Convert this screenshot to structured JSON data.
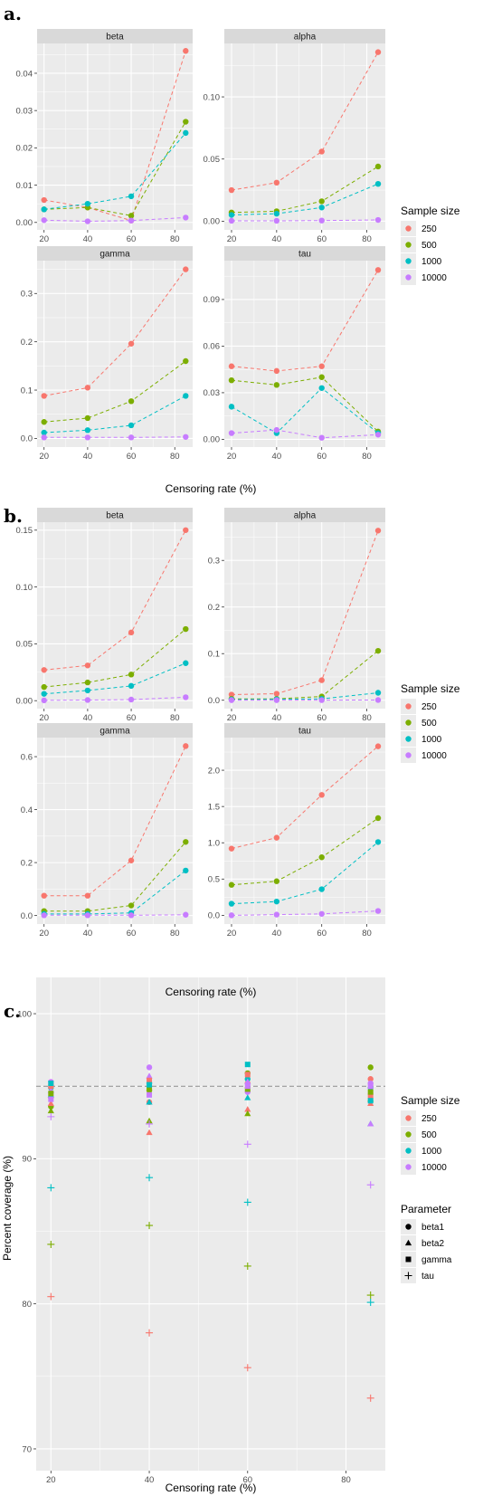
{
  "figure_labels": [
    "a.",
    "b.",
    "c."
  ],
  "legend": {
    "sample_title": "Sample size",
    "sample_items": [
      "250",
      "500",
      "1000",
      "10000"
    ],
    "parameter_title": "Parameter",
    "parameter_items": [
      "beta1",
      "beta2",
      "gamma",
      "tau"
    ]
  },
  "colors": {
    "250": "#F8766D",
    "500": "#7CAE00",
    "1000": "#00BFC4",
    "10000": "#C77CFF",
    "panel_bg": "#EBEBEB",
    "strip_bg": "#D9D9D9",
    "reference_line": "#8C8C8C"
  },
  "chart_data": [
    {
      "type": "line",
      "panel": "a",
      "xlabel": "Censoring rate (%)",
      "ylabel": "",
      "legend_title": "Sample size",
      "line_style": "dashed",
      "facets": [
        {
          "name": "beta",
          "x": [
            20,
            40,
            60,
            85
          ],
          "xticks": [
            20,
            40,
            60,
            80
          ],
          "ylim": [
            -0.002,
            0.048
          ],
          "yticks": [
            0.0,
            0.01,
            0.02,
            0.03,
            0.04
          ],
          "ytick_labels": [
            "0.00",
            "0.01",
            "0.02",
            "0.03",
            "0.04"
          ],
          "series": [
            {
              "name": "250",
              "values": [
                0.006,
                0.004,
                0.0005,
                0.046
              ]
            },
            {
              "name": "500",
              "values": [
                0.0035,
                0.004,
                0.0018,
                0.027
              ]
            },
            {
              "name": "1000",
              "values": [
                0.0035,
                0.005,
                0.007,
                0.024
              ]
            },
            {
              "name": "10000",
              "values": [
                0.0006,
                0.0003,
                0.0005,
                0.0013
              ]
            }
          ]
        },
        {
          "name": "alpha",
          "x": [
            20,
            40,
            60,
            85
          ],
          "xticks": [
            20,
            40,
            60,
            80
          ],
          "ylim": [
            -0.007,
            0.143
          ],
          "yticks": [
            0.0,
            0.05,
            0.1
          ],
          "ytick_labels": [
            "0.00",
            "0.05",
            "0.10"
          ],
          "series": [
            {
              "name": "250",
              "values": [
                0.025,
                0.031,
                0.056,
                0.136
              ]
            },
            {
              "name": "500",
              "values": [
                0.007,
                0.008,
                0.016,
                0.044
              ]
            },
            {
              "name": "1000",
              "values": [
                0.005,
                0.006,
                0.011,
                0.03
              ]
            },
            {
              "name": "10000",
              "values": [
                0.0003,
                0.0003,
                0.0005,
                0.001
              ]
            }
          ]
        },
        {
          "name": "gamma",
          "x": [
            20,
            40,
            60,
            85
          ],
          "xticks": [
            20,
            40,
            60,
            80
          ],
          "ylim": [
            -0.018,
            0.368
          ],
          "yticks": [
            0.0,
            0.1,
            0.2,
            0.3
          ],
          "ytick_labels": [
            "0.0",
            "0.1",
            "0.2",
            "0.3"
          ],
          "series": [
            {
              "name": "250",
              "values": [
                0.088,
                0.105,
                0.196,
                0.35
              ]
            },
            {
              "name": "500",
              "values": [
                0.034,
                0.042,
                0.077,
                0.16
              ]
            },
            {
              "name": "1000",
              "values": [
                0.012,
                0.017,
                0.027,
                0.088
              ]
            },
            {
              "name": "10000",
              "values": [
                0.002,
                0.002,
                0.002,
                0.003
              ]
            }
          ]
        },
        {
          "name": "tau",
          "x": [
            20,
            40,
            60,
            85
          ],
          "xticks": [
            20,
            40,
            60,
            80
          ],
          "ylim": [
            -0.005,
            0.115
          ],
          "yticks": [
            0.0,
            0.03,
            0.06,
            0.09
          ],
          "ytick_labels": [
            "0.00",
            "0.03",
            "0.06",
            "0.09"
          ],
          "series": [
            {
              "name": "250",
              "values": [
                0.047,
                0.044,
                0.047,
                0.109
              ]
            },
            {
              "name": "500",
              "values": [
                0.038,
                0.035,
                0.04,
                0.005
              ]
            },
            {
              "name": "1000",
              "values": [
                0.021,
                0.004,
                0.033,
                0.004
              ]
            },
            {
              "name": "10000",
              "values": [
                0.004,
                0.006,
                0.001,
                0.003
              ]
            }
          ]
        }
      ]
    },
    {
      "type": "line",
      "panel": "b",
      "xlabel": "Censoring rate (%)",
      "ylabel": "",
      "legend_title": "Sample size",
      "line_style": "dashed",
      "facets": [
        {
          "name": "beta",
          "x": [
            20,
            40,
            60,
            85
          ],
          "xticks": [
            20,
            40,
            60,
            80
          ],
          "ylim": [
            -0.007,
            0.157
          ],
          "yticks": [
            0.0,
            0.05,
            0.1,
            0.15
          ],
          "ytick_labels": [
            "0.00",
            "0.05",
            "0.10",
            "0.15"
          ],
          "series": [
            {
              "name": "250",
              "values": [
                0.027,
                0.031,
                0.06,
                0.15
              ]
            },
            {
              "name": "500",
              "values": [
                0.012,
                0.016,
                0.023,
                0.063
              ]
            },
            {
              "name": "1000",
              "values": [
                0.006,
                0.009,
                0.013,
                0.033
              ]
            },
            {
              "name": "10000",
              "values": [
                0.0003,
                0.0006,
                0.001,
                0.003
              ]
            }
          ]
        },
        {
          "name": "alpha",
          "x": [
            20,
            40,
            60,
            85
          ],
          "xticks": [
            20,
            40,
            60,
            80
          ],
          "ylim": [
            -0.018,
            0.382
          ],
          "yticks": [
            0.0,
            0.1,
            0.2,
            0.3
          ],
          "ytick_labels": [
            "0.0",
            "0.1",
            "0.2",
            "0.3"
          ],
          "series": [
            {
              "name": "250",
              "values": [
                0.012,
                0.014,
                0.043,
                0.364
              ]
            },
            {
              "name": "500",
              "values": [
                0.003,
                0.003,
                0.008,
                0.106
              ]
            },
            {
              "name": "1000",
              "values": [
                0.0015,
                0.002,
                0.003,
                0.016
              ]
            },
            {
              "name": "10000",
              "values": [
                0.0002,
                0.0002,
                0.0003,
                0.0005
              ]
            }
          ]
        },
        {
          "name": "gamma",
          "x": [
            20,
            40,
            60,
            85
          ],
          "xticks": [
            20,
            40,
            60,
            80
          ],
          "ylim": [
            -0.032,
            0.672
          ],
          "yticks": [
            0.0,
            0.2,
            0.4,
            0.6
          ],
          "ytick_labels": [
            "0.0",
            "0.2",
            "0.4",
            "0.6"
          ],
          "series": [
            {
              "name": "250",
              "values": [
                0.075,
                0.075,
                0.208,
                0.64
              ]
            },
            {
              "name": "500",
              "values": [
                0.017,
                0.017,
                0.038,
                0.278
              ]
            },
            {
              "name": "1000",
              "values": [
                0.006,
                0.006,
                0.01,
                0.17
              ]
            },
            {
              "name": "10000",
              "values": [
                0.001,
                0.001,
                0.001,
                0.003
              ]
            }
          ]
        },
        {
          "name": "tau",
          "x": [
            20,
            40,
            60,
            85
          ],
          "xticks": [
            20,
            40,
            60,
            80
          ],
          "ylim": [
            -0.12,
            2.45
          ],
          "yticks": [
            0.0,
            0.5,
            1.0,
            1.5,
            2.0
          ],
          "ytick_labels": [
            "0.0",
            "0.5",
            "1.0",
            "1.5",
            "2.0"
          ],
          "series": [
            {
              "name": "250",
              "values": [
                0.92,
                1.07,
                1.66,
                2.33
              ]
            },
            {
              "name": "500",
              "values": [
                0.42,
                0.47,
                0.8,
                1.34
              ]
            },
            {
              "name": "1000",
              "values": [
                0.16,
                0.19,
                0.36,
                1.01
              ]
            },
            {
              "name": "10000",
              "values": [
                0.0,
                0.01,
                0.02,
                0.06
              ]
            }
          ]
        }
      ]
    },
    {
      "type": "scatter",
      "panel": "c",
      "xlabel": "Censoring rate (%)",
      "ylabel": "Percent coverage (%)",
      "xlim": [
        17,
        88
      ],
      "ylim": [
        68.5,
        102.5
      ],
      "xticks": [
        20,
        40,
        60,
        80
      ],
      "yticks": [
        70,
        80,
        90,
        100
      ],
      "reference_line_y": 95,
      "grid": true,
      "color_legend_title": "Sample size",
      "shape_legend_title": "Parameter",
      "points": [
        {
          "x": 20,
          "sample": "250",
          "param": "beta1",
          "y": 94.2
        },
        {
          "x": 20,
          "sample": "500",
          "param": "beta1",
          "y": 93.6
        },
        {
          "x": 20,
          "sample": "1000",
          "param": "beta1",
          "y": 94.9
        },
        {
          "x": 20,
          "sample": "10000",
          "param": "beta1",
          "y": 95.3
        },
        {
          "x": 20,
          "sample": "250",
          "param": "beta2",
          "y": 93.8
        },
        {
          "x": 20,
          "sample": "500",
          "param": "beta2",
          "y": 93.3
        },
        {
          "x": 20,
          "sample": "1000",
          "param": "beta2",
          "y": 94.4
        },
        {
          "x": 20,
          "sample": "10000",
          "param": "beta2",
          "y": 94.7
        },
        {
          "x": 20,
          "sample": "250",
          "param": "gamma",
          "y": 95.0
        },
        {
          "x": 20,
          "sample": "500",
          "param": "gamma",
          "y": 94.5
        },
        {
          "x": 20,
          "sample": "1000",
          "param": "gamma",
          "y": 95.2
        },
        {
          "x": 20,
          "sample": "10000",
          "param": "gamma",
          "y": 94.1
        },
        {
          "x": 20,
          "sample": "250",
          "param": "tau",
          "y": 80.5
        },
        {
          "x": 20,
          "sample": "500",
          "param": "tau",
          "y": 84.1
        },
        {
          "x": 20,
          "sample": "1000",
          "param": "tau",
          "y": 88.0
        },
        {
          "x": 20,
          "sample": "10000",
          "param": "tau",
          "y": 92.9
        },
        {
          "x": 40,
          "sample": "250",
          "param": "beta1",
          "y": 93.9
        },
        {
          "x": 40,
          "sample": "500",
          "param": "beta1",
          "y": 94.7
        },
        {
          "x": 40,
          "sample": "1000",
          "param": "beta1",
          "y": 95.2
        },
        {
          "x": 40,
          "sample": "10000",
          "param": "beta1",
          "y": 96.3
        },
        {
          "x": 40,
          "sample": "250",
          "param": "beta2",
          "y": 91.8
        },
        {
          "x": 40,
          "sample": "500",
          "param": "beta2",
          "y": 92.6
        },
        {
          "x": 40,
          "sample": "1000",
          "param": "beta2",
          "y": 93.9
        },
        {
          "x": 40,
          "sample": "10000",
          "param": "beta2",
          "y": 95.7
        },
        {
          "x": 40,
          "sample": "250",
          "param": "gamma",
          "y": 95.4
        },
        {
          "x": 40,
          "sample": "500",
          "param": "gamma",
          "y": 94.9
        },
        {
          "x": 40,
          "sample": "1000",
          "param": "gamma",
          "y": 95.1
        },
        {
          "x": 40,
          "sample": "10000",
          "param": "gamma",
          "y": 94.4
        },
        {
          "x": 40,
          "sample": "250",
          "param": "tau",
          "y": 78.0
        },
        {
          "x": 40,
          "sample": "500",
          "param": "tau",
          "y": 85.4
        },
        {
          "x": 40,
          "sample": "1000",
          "param": "tau",
          "y": 88.7
        },
        {
          "x": 40,
          "sample": "10000",
          "param": "tau",
          "y": 92.4
        },
        {
          "x": 60,
          "sample": "250",
          "param": "beta1",
          "y": 95.2
        },
        {
          "x": 60,
          "sample": "500",
          "param": "beta1",
          "y": 95.9
        },
        {
          "x": 60,
          "sample": "1000",
          "param": "beta1",
          "y": 95.5
        },
        {
          "x": 60,
          "sample": "10000",
          "param": "beta1",
          "y": 94.6
        },
        {
          "x": 60,
          "sample": "250",
          "param": "beta2",
          "y": 93.4
        },
        {
          "x": 60,
          "sample": "500",
          "param": "beta2",
          "y": 93.1
        },
        {
          "x": 60,
          "sample": "1000",
          "param": "beta2",
          "y": 94.2
        },
        {
          "x": 60,
          "sample": "10000",
          "param": "beta2",
          "y": 95.3
        },
        {
          "x": 60,
          "sample": "250",
          "param": "gamma",
          "y": 95.8
        },
        {
          "x": 60,
          "sample": "500",
          "param": "gamma",
          "y": 94.8
        },
        {
          "x": 60,
          "sample": "1000",
          "param": "gamma",
          "y": 96.5
        },
        {
          "x": 60,
          "sample": "10000",
          "param": "gamma",
          "y": 95.0
        },
        {
          "x": 60,
          "sample": "250",
          "param": "tau",
          "y": 75.6
        },
        {
          "x": 60,
          "sample": "500",
          "param": "tau",
          "y": 82.6
        },
        {
          "x": 60,
          "sample": "1000",
          "param": "tau",
          "y": 87.0
        },
        {
          "x": 60,
          "sample": "10000",
          "param": "tau",
          "y": 91.0
        },
        {
          "x": 85,
          "sample": "250",
          "param": "beta1",
          "y": 95.5
        },
        {
          "x": 85,
          "sample": "500",
          "param": "beta1",
          "y": 96.3
        },
        {
          "x": 85,
          "sample": "1000",
          "param": "beta1",
          "y": 94.9
        },
        {
          "x": 85,
          "sample": "10000",
          "param": "beta1",
          "y": 95.2
        },
        {
          "x": 85,
          "sample": "250",
          "param": "beta2",
          "y": 93.8
        },
        {
          "x": 85,
          "sample": "500",
          "param": "beta2",
          "y": 94.1
        },
        {
          "x": 85,
          "sample": "1000",
          "param": "beta2",
          "y": 92.4
        },
        {
          "x": 85,
          "sample": "10000",
          "param": "beta2",
          "y": 92.4
        },
        {
          "x": 85,
          "sample": "250",
          "param": "gamma",
          "y": 94.3
        },
        {
          "x": 85,
          "sample": "500",
          "param": "gamma",
          "y": 94.6
        },
        {
          "x": 85,
          "sample": "1000",
          "param": "gamma",
          "y": 94.0
        },
        {
          "x": 85,
          "sample": "10000",
          "param": "gamma",
          "y": 95.0
        },
        {
          "x": 85,
          "sample": "250",
          "param": "tau",
          "y": 73.5
        },
        {
          "x": 85,
          "sample": "500",
          "param": "tau",
          "y": 80.6
        },
        {
          "x": 85,
          "sample": "1000",
          "param": "tau",
          "y": 80.1
        },
        {
          "x": 85,
          "sample": "10000",
          "param": "tau",
          "y": 88.2
        }
      ]
    }
  ]
}
